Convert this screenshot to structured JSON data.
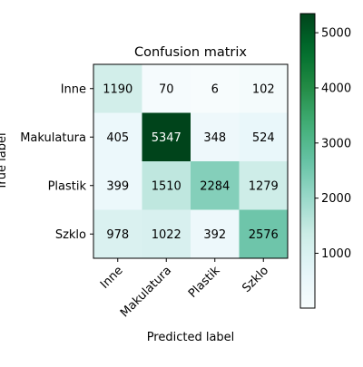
{
  "chart_data": {
    "type": "heatmap",
    "title": "Confusion matrix",
    "xlabel": "Predicted label",
    "ylabel": "True label",
    "row_labels": [
      "Inne",
      "Makulatura",
      "Plastik",
      "Szklo"
    ],
    "col_labels": [
      "Inne",
      "Makulatura",
      "Plastik",
      "Szklo"
    ],
    "values": [
      [
        1190,
        70,
        6,
        102
      ],
      [
        405,
        5347,
        348,
        524
      ],
      [
        399,
        1510,
        2284,
        1279
      ],
      [
        978,
        1022,
        392,
        2576
      ]
    ],
    "colormap": "BuGn",
    "color_low": "#f7fcfd",
    "color_high": "#00441b",
    "colorbar_ticks": [
      1000,
      2000,
      3000,
      4000,
      5000
    ],
    "grid": false
  }
}
